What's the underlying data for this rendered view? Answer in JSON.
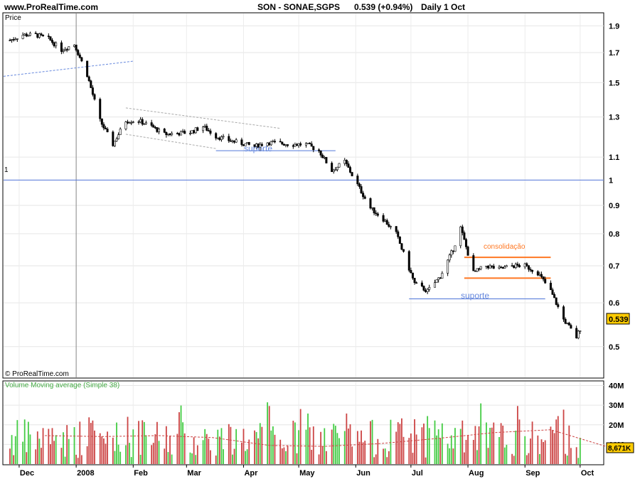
{
  "header": {
    "site": "www.ProRealTime.com",
    "instrument": "SON - SONAE,SGPS",
    "last": "0.539 (+0.94%)",
    "period": "Daily  1 Oct"
  },
  "price_panel": {
    "label": "Price",
    "copyright": "© ProRealTime.com",
    "price_badge": "0.539",
    "ref_line_label": "1",
    "y_ticks": [
      "1.9",
      "1.7",
      "1.5",
      "1.3",
      "1.1",
      "1",
      "0.9",
      "0.8",
      "0.7",
      "0.6",
      "0.5"
    ],
    "annotations": {
      "support_1": "suporte",
      "support_2": "suporte",
      "consolidation": "consolidação"
    }
  },
  "volume_panel": {
    "title": "Volume Moving average (Simple 38)",
    "y_ticks": [
      "40M",
      "30M",
      "20M",
      "10M"
    ],
    "volume_badge": "8,671K"
  },
  "x_axis": {
    "labels": [
      "Dec",
      "2008",
      "Feb",
      "Mar",
      "Apr",
      "May",
      "Jun",
      "Jul",
      "Aug",
      "Sep",
      "Oct"
    ]
  },
  "colors": {
    "up_volume": "#44cc44",
    "down_volume": "#cc4444",
    "moving_average": "#cc4444",
    "support_line": "#6688dd",
    "consolidation_line": "#ff7722",
    "badge": "#ffcc00"
  },
  "chart_data": [
    {
      "type": "candlestick",
      "title": "SON - SONAE,SGPS",
      "ylabel": "Price",
      "y_scale": "log",
      "ylim": [
        0.44,
        2.0
      ],
      "x_range": [
        "2007-11-26",
        "2008-10-03"
      ],
      "close_path": [
        [
          "2007-11-26",
          1.79
        ],
        [
          "2007-12-03",
          1.83
        ],
        [
          "2007-12-10",
          1.83
        ],
        [
          "2007-12-17",
          1.8
        ],
        [
          "2007-12-24",
          1.72
        ],
        [
          "2007-12-31",
          1.76
        ],
        [
          "2008-01-07",
          1.55
        ],
        [
          "2008-01-14",
          1.28
        ],
        [
          "2008-01-21",
          1.16
        ],
        [
          "2008-01-28",
          1.28
        ],
        [
          "2008-02-04",
          1.28
        ],
        [
          "2008-02-11",
          1.25
        ],
        [
          "2008-02-18",
          1.21
        ],
        [
          "2008-03-03",
          1.22
        ],
        [
          "2008-03-10",
          1.25
        ],
        [
          "2008-03-17",
          1.2
        ],
        [
          "2008-03-24",
          1.18
        ],
        [
          "2008-04-07",
          1.15
        ],
        [
          "2008-04-14",
          1.17
        ],
        [
          "2008-04-28",
          1.16
        ],
        [
          "2008-05-05",
          1.16
        ],
        [
          "2008-05-12",
          1.13
        ],
        [
          "2008-05-19",
          1.04
        ],
        [
          "2008-05-26",
          1.08
        ],
        [
          "2008-06-02",
          0.98
        ],
        [
          "2008-06-09",
          0.89
        ],
        [
          "2008-06-16",
          0.85
        ],
        [
          "2008-06-23",
          0.8
        ],
        [
          "2008-07-03",
          0.65
        ],
        [
          "2008-07-10",
          0.63
        ],
        [
          "2008-07-17",
          0.67
        ],
        [
          "2008-07-24",
          0.75
        ],
        [
          "2008-07-28",
          0.82
        ],
        [
          "2008-08-04",
          0.68
        ],
        [
          "2008-08-11",
          0.7
        ],
        [
          "2008-08-18",
          0.69
        ],
        [
          "2008-08-25",
          0.7
        ],
        [
          "2008-09-01",
          0.7
        ],
        [
          "2008-09-08",
          0.68
        ],
        [
          "2008-09-15",
          0.63
        ],
        [
          "2008-09-22",
          0.56
        ],
        [
          "2008-09-29",
          0.52
        ],
        [
          "2008-10-01",
          0.539
        ]
      ],
      "reference_line": 1.0,
      "support_levels": [
        {
          "label": "suporte",
          "value": 1.13,
          "from": "2008-03-17",
          "to": "2008-05-21"
        },
        {
          "label": "suporte",
          "value": 0.61,
          "from": "2008-06-30",
          "to": "2008-09-12"
        }
      ],
      "consolidation": {
        "label": "consolidação",
        "upper": 0.725,
        "lower": 0.665,
        "from": "2008-07-30",
        "to": "2008-09-15"
      },
      "last": 0.539
    },
    {
      "type": "bar",
      "title": "Volume Moving average (Simple 38)",
      "ylabel": "Volume",
      "ylim": [
        0,
        42
      ],
      "units": "M",
      "moving_average_levels_M": [
        [
          "2007-12",
          14.5
        ],
        [
          "2008-01",
          14.0
        ],
        [
          "2008-02",
          14.5
        ],
        [
          "2008-03",
          13.5
        ],
        [
          "2008-04",
          9.5
        ],
        [
          "2008-05",
          9.0
        ],
        [
          "2008-06",
          10.5
        ],
        [
          "2008-07",
          13.0
        ],
        [
          "2008-08",
          16.0
        ],
        [
          "2008-09",
          17.5
        ],
        [
          "2008-10",
          9.0
        ]
      ],
      "last_volume": "8,671K"
    }
  ]
}
